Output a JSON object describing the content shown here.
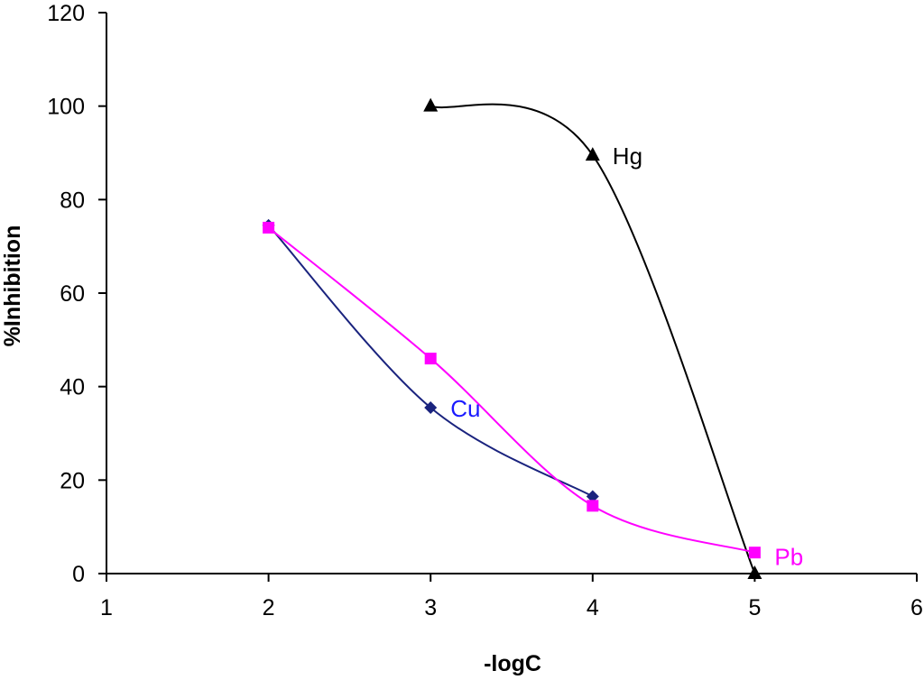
{
  "chart_data": {
    "type": "line",
    "title": "",
    "xlabel": "-logC",
    "ylabel": "%Inhibition",
    "xlim": [
      1,
      6
    ],
    "ylim": [
      0,
      120
    ],
    "xticks": [
      1,
      2,
      3,
      4,
      5,
      6
    ],
    "yticks": [
      0,
      20,
      40,
      60,
      80,
      100,
      120
    ],
    "grid": false,
    "legend": "inline labels",
    "series": [
      {
        "name": "Hg",
        "color": "#000000",
        "marker": "triangle",
        "x": [
          3,
          4,
          5
        ],
        "y": [
          100,
          89.5,
          0
        ]
      },
      {
        "name": "Cu",
        "color": "#1a237e",
        "marker": "diamond",
        "x": [
          2,
          3,
          4
        ],
        "y": [
          74.5,
          35.5,
          16.5
        ]
      },
      {
        "name": "Pb",
        "color": "#ff00ff",
        "marker": "square",
        "x": [
          2,
          3,
          4,
          5
        ],
        "y": [
          74,
          46,
          14.5,
          4.5
        ]
      }
    ]
  }
}
